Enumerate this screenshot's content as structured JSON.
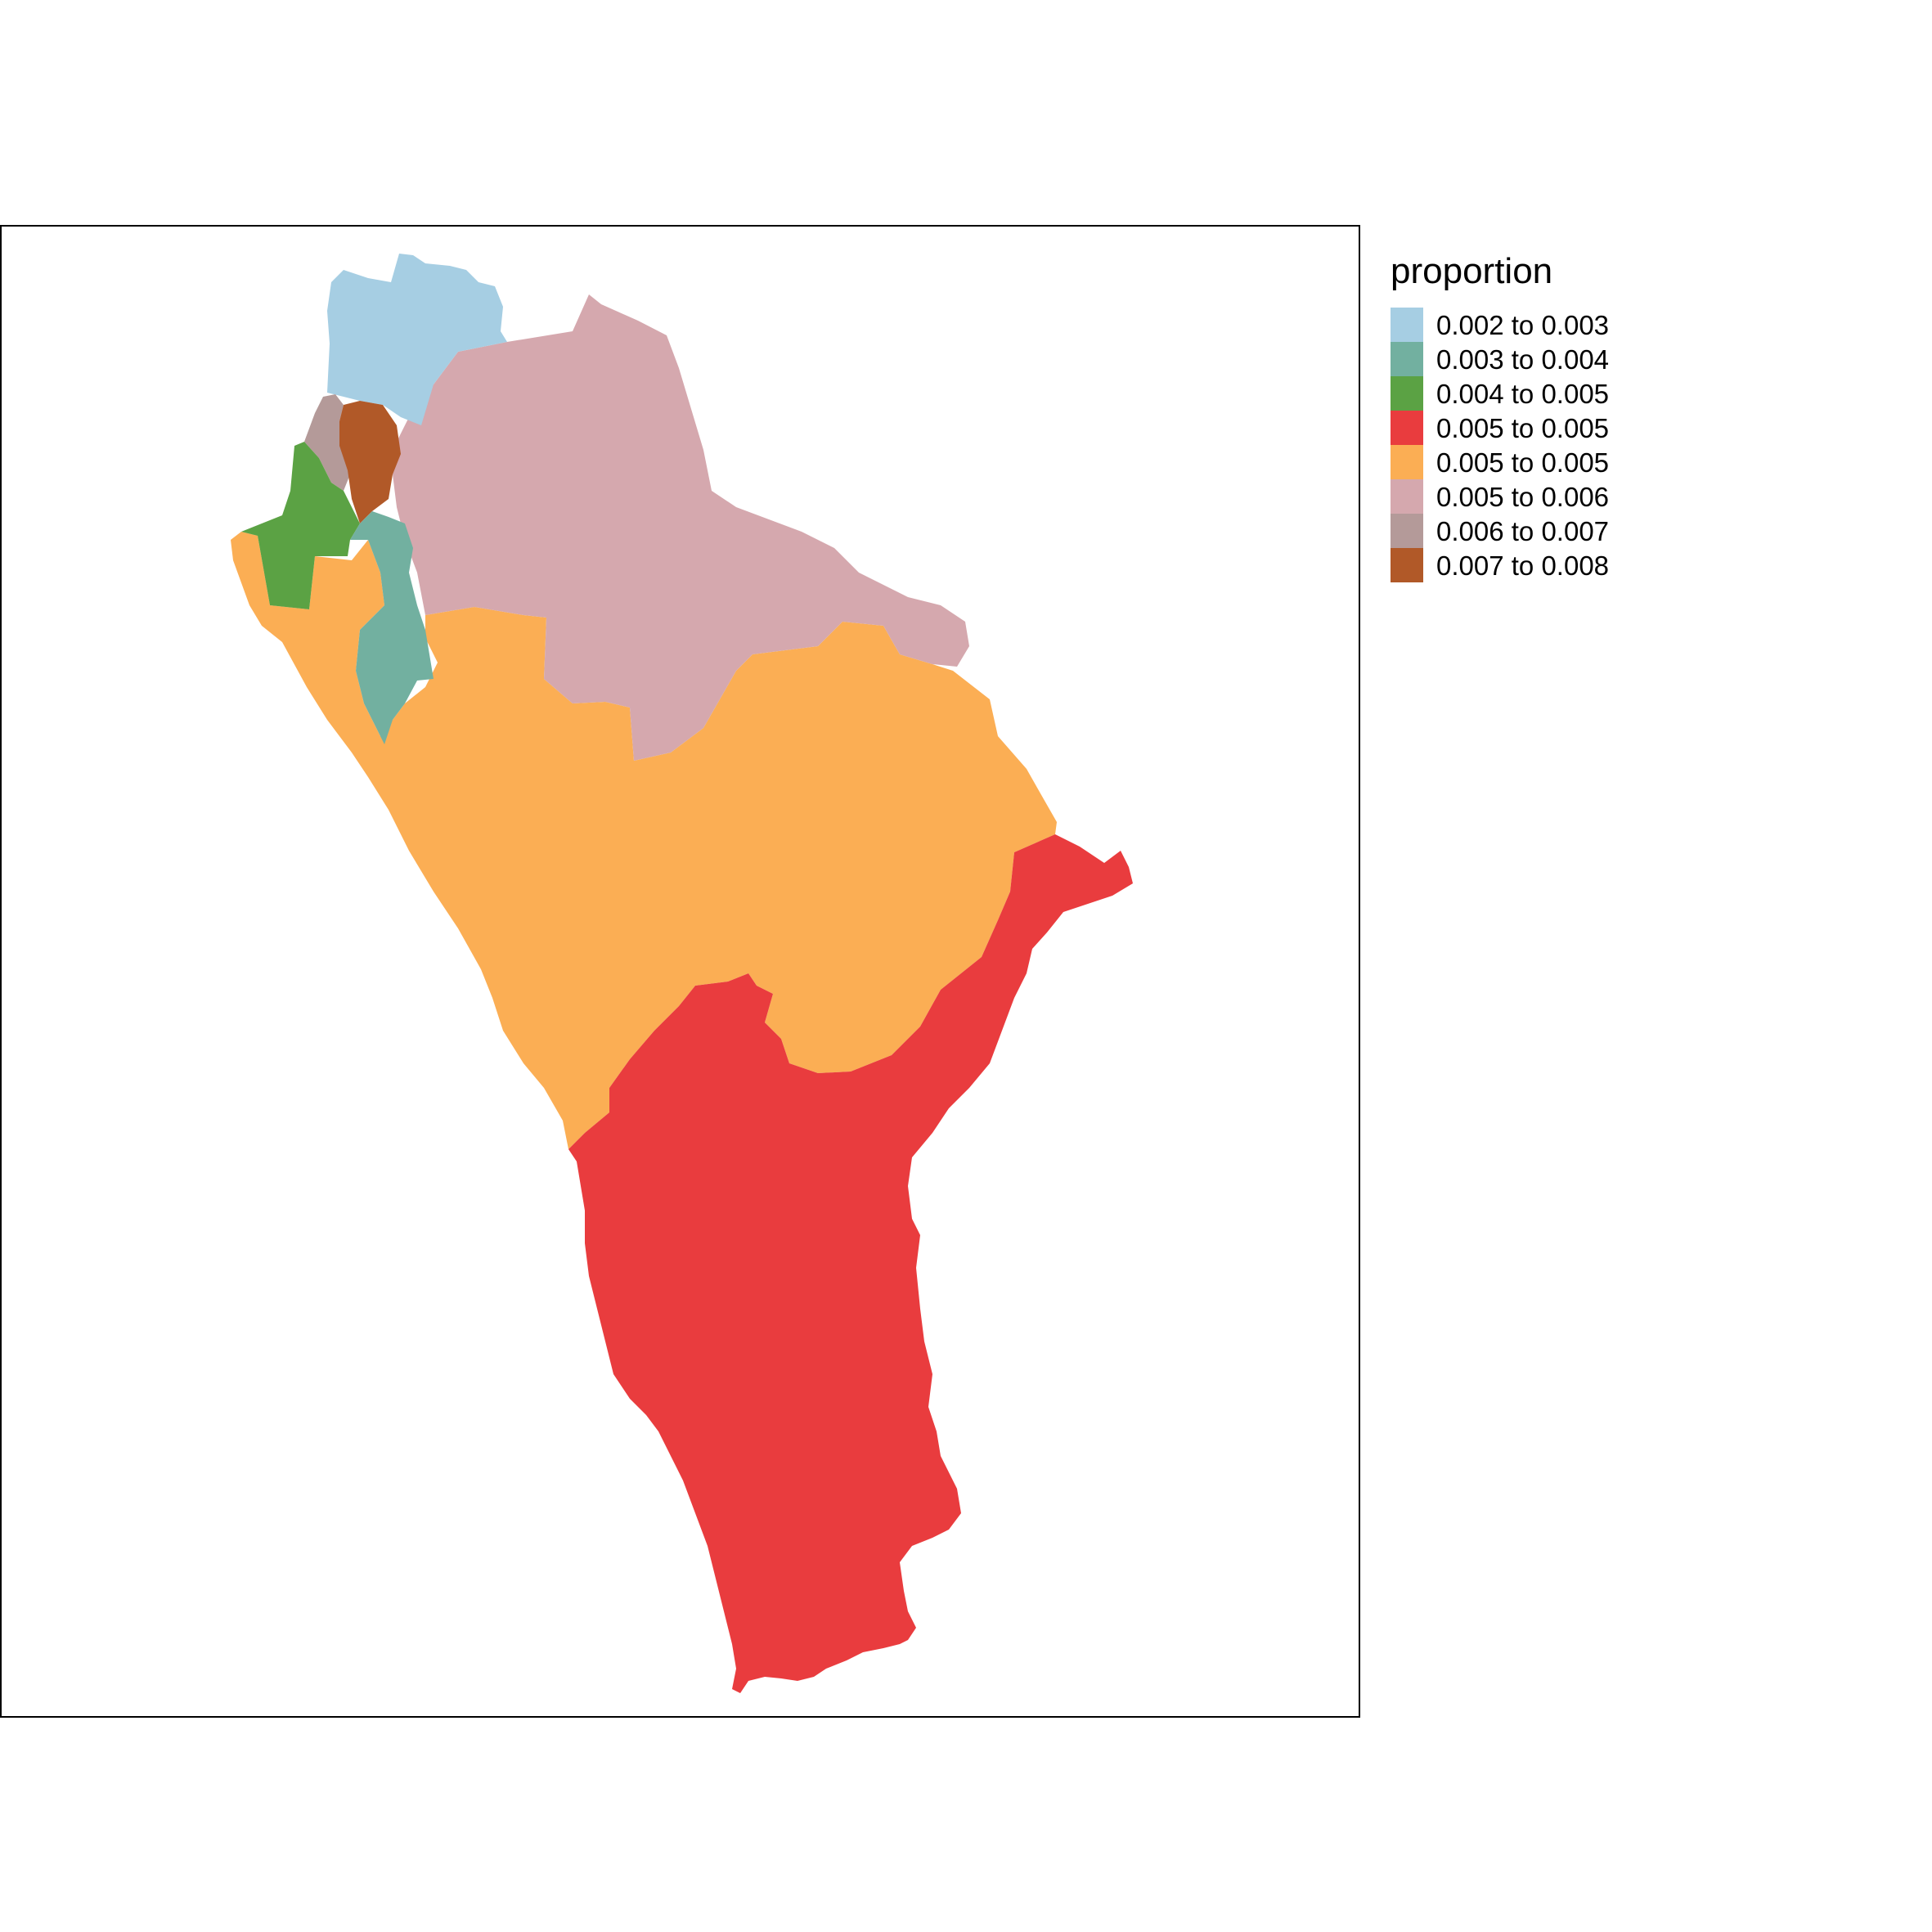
{
  "legend": {
    "title": "proportion",
    "items": [
      {
        "label": "0.002 to 0.003",
        "color": "#a6cee3"
      },
      {
        "label": "0.003 to 0.004",
        "color": "#72b0a0"
      },
      {
        "label": "0.004 to 0.005",
        "color": "#5ba244"
      },
      {
        "label": "0.005 to 0.005",
        "color": "#e93c3e"
      },
      {
        "label": "0.005 to 0.005",
        "color": "#fbae54"
      },
      {
        "label": "0.005 to 0.006",
        "color": "#d5a8ae"
      },
      {
        "label": "0.006 to 0.007",
        "color": "#b49a99"
      },
      {
        "label": "0.007 to 0.008",
        "color": "#b15928"
      }
    ]
  },
  "regions": [
    {
      "name": "region-north-blue",
      "class": "0.002 to 0.003",
      "color": "#a6cee3"
    },
    {
      "name": "region-teal",
      "class": "0.003 to 0.004",
      "color": "#72b0a0"
    },
    {
      "name": "region-green",
      "class": "0.004 to 0.005",
      "color": "#5ba244"
    },
    {
      "name": "region-south-red",
      "class": "0.005 to 0.005",
      "color": "#e93c3e"
    },
    {
      "name": "region-central-orange",
      "class": "0.005 to 0.005",
      "color": "#fbae54"
    },
    {
      "name": "region-northeast-pink",
      "class": "0.005 to 0.006",
      "color": "#d5a8ae"
    },
    {
      "name": "region-small-grey",
      "class": "0.006 to 0.007",
      "color": "#b49a99"
    },
    {
      "name": "region-brown",
      "class": "0.007 to 0.008",
      "color": "#b15928"
    }
  ]
}
